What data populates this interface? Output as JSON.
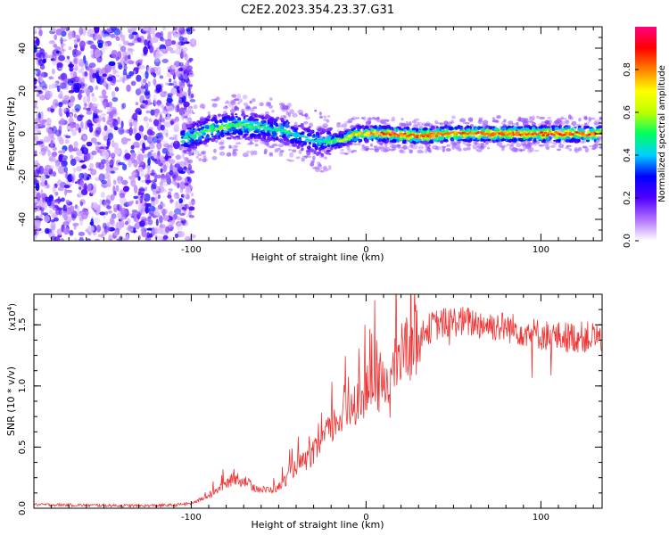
{
  "title": "C2E2.2023.354.23.37.G31",
  "chart_data": [
    {
      "type": "heatmap",
      "xlabel": "Height of straight line (km)",
      "ylabel": "Frequency (Hz)",
      "xlim": [
        -190,
        135
      ],
      "ylim": [
        -50,
        50
      ],
      "xticks": [
        "-100",
        "0",
        "100"
      ],
      "xtick_values": [
        -100,
        0,
        100
      ],
      "yticks": [
        "40",
        "20",
        "0",
        "-20",
        "-40"
      ],
      "ytick_values": [
        40,
        20,
        0,
        -20,
        -40
      ],
      "ridge": {
        "x": [
          -105,
          -90,
          -75,
          -60,
          -45,
          -35,
          -25,
          -15,
          -5,
          10,
          30,
          50,
          70,
          90,
          110,
          130
        ],
        "y": [
          -3,
          2,
          4,
          3,
          1,
          -2,
          -4,
          -3,
          0,
          0,
          -1,
          0,
          0,
          0,
          0,
          0
        ],
        "peak_amplitude": [
          0.5,
          0.55,
          0.55,
          0.5,
          0.5,
          0.45,
          0.45,
          0.6,
          0.75,
          0.85,
          0.85,
          0.85,
          0.85,
          0.85,
          0.85,
          0.85
        ]
      },
      "noise_region": {
        "x_from": -190,
        "x_to": -103,
        "amplitude": "low (purple)"
      },
      "colorbar": {
        "label": "Normalized spectral amplitude",
        "ticks": [
          "0.0",
          "0.2",
          "0.4",
          "0.6",
          "0.8"
        ],
        "tick_values": [
          0.0,
          0.2,
          0.4,
          0.6,
          0.8
        ],
        "range": [
          0,
          1
        ],
        "colors": [
          "#ffffff",
          "#b070ff",
          "#5000ff",
          "#0000ff",
          "#00d0ff",
          "#00ff60",
          "#c0ff00",
          "#ffff00",
          "#ff8000",
          "#ff0000",
          "#ff0080"
        ]
      }
    },
    {
      "type": "line",
      "xlabel": "Height of straight line (km)",
      "ylabel": "SNR (10 * v/v)",
      "scale_label": "(x10",
      "scale_exp": "4",
      "scale_close": ")",
      "xlim": [
        -190,
        135
      ],
      "ylim": [
        0,
        17500
      ],
      "xticks": [
        "-100",
        "0",
        "100"
      ],
      "xtick_values": [
        -100,
        0,
        100
      ],
      "yticks": [
        "0.0",
        "0.5",
        "1.0",
        "1.5"
      ],
      "ytick_values": [
        0,
        5000,
        10000,
        15000
      ],
      "line_color": "#ee3333",
      "series": [
        {
          "x": [
            -190,
            -160,
            -130,
            -110,
            -100,
            -95,
            -90,
            -85,
            -80,
            -75,
            -70,
            -65,
            -60,
            -55,
            -50,
            -45,
            -40,
            -35,
            -30,
            -25,
            -20,
            -15,
            -10,
            -5,
            0,
            5,
            10,
            15,
            20,
            25,
            30,
            40,
            50,
            60,
            70,
            80,
            90,
            100,
            110,
            120,
            135
          ],
          "y": [
            300,
            250,
            200,
            250,
            400,
            700,
            1000,
            1500,
            2000,
            2500,
            2300,
            1800,
            1500,
            1500,
            1700,
            2500,
            3500,
            3800,
            4500,
            5500,
            6500,
            7500,
            8000,
            9000,
            9500,
            9800,
            10000,
            11000,
            12500,
            13500,
            14200,
            15000,
            15300,
            15200,
            15000,
            14800,
            14500,
            14200,
            14000,
            14000,
            14000
          ]
        }
      ]
    }
  ]
}
